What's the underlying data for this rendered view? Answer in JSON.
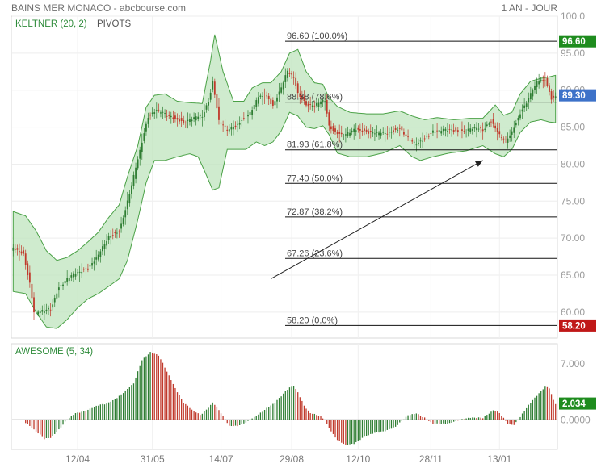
{
  "header": {
    "title": "BAINS MER MONACO - abcbourse.com",
    "period": "1 AN - JOUR"
  },
  "legend": {
    "keltner": "KELTNER (20, 2)",
    "pivots": "PIVOTS",
    "awesome": "AWESOME (5, 34)"
  },
  "colors": {
    "band_fill": "#bfe4bd",
    "band_line": "#4aa146",
    "candle_up": "#2e7d32",
    "candle_down": "#c0392b",
    "high_tag": "#1e8c1e",
    "last_tag": "#3d72c9",
    "low_tag": "#c01818"
  },
  "price_tags": {
    "high": "96.60",
    "last": "89.30",
    "low": "58.20"
  },
  "ao_tags": {
    "last": "2.034",
    "zero": "0.0000"
  },
  "chart_data": [
    {
      "type": "candlestick",
      "title": "BAINS MER MONACO",
      "ylim": [
        56.5,
        100
      ],
      "y_ticks": [
        60,
        65,
        70,
        75,
        80,
        85,
        90,
        95,
        100
      ],
      "y_tick_labels": [
        "60.00",
        "65.00",
        "70.00",
        "75.00",
        "80.00",
        "85.00",
        "90.00",
        "95.00",
        "100.0"
      ],
      "x_tick_labels": [
        "12/04",
        "31/05",
        "14/07",
        "29/08",
        "12/10",
        "28/11",
        "13/01"
      ],
      "x_tick_index": [
        31,
        67,
        100,
        134,
        166,
        201,
        234
      ],
      "n_bars": 262,
      "close_anchors": [
        [
          0,
          68.5
        ],
        [
          5,
          67.8
        ],
        [
          8,
          64.0
        ],
        [
          10,
          60.2
        ],
        [
          13,
          60.0
        ],
        [
          18,
          60.3
        ],
        [
          22,
          63.5
        ],
        [
          27,
          64.8
        ],
        [
          32,
          65.3
        ],
        [
          36,
          66.0
        ],
        [
          41,
          67.8
        ],
        [
          46,
          70.0
        ],
        [
          51,
          71.0
        ],
        [
          55,
          75.0
        ],
        [
          60,
          80.5
        ],
        [
          65,
          86.5
        ],
        [
          69,
          87.5
        ],
        [
          75,
          86.3
        ],
        [
          82,
          85.8
        ],
        [
          88,
          86.3
        ],
        [
          91,
          86.3
        ],
        [
          94,
          88.5
        ],
        [
          96,
          91.3
        ],
        [
          99,
          86.0
        ],
        [
          103,
          84.5
        ],
        [
          107,
          85.0
        ],
        [
          110,
          86.0
        ],
        [
          114,
          87.0
        ],
        [
          118,
          89.0
        ],
        [
          122,
          89.0
        ],
        [
          125,
          88.0
        ],
        [
          129,
          90.5
        ],
        [
          132,
          92.5
        ],
        [
          135,
          91.5
        ],
        [
          137,
          89.5
        ],
        [
          141,
          88.2
        ],
        [
          145,
          88.0
        ],
        [
          150,
          88.5
        ],
        [
          152,
          85.0
        ],
        [
          156,
          84.3
        ],
        [
          160,
          84.0
        ],
        [
          164,
          84.5
        ],
        [
          170,
          84.5
        ],
        [
          176,
          84.2
        ],
        [
          180,
          84.0
        ],
        [
          186,
          85.0
        ],
        [
          190,
          83.5
        ],
        [
          194,
          82.5
        ],
        [
          198,
          83.5
        ],
        [
          202,
          84.6
        ],
        [
          208,
          84.5
        ],
        [
          214,
          84.5
        ],
        [
          222,
          84.8
        ],
        [
          226,
          84.5
        ],
        [
          230,
          86.0
        ],
        [
          234,
          84.0
        ],
        [
          237,
          83.0
        ],
        [
          240,
          84.2
        ],
        [
          244,
          87.0
        ],
        [
          248,
          89.0
        ],
        [
          252,
          91.0
        ],
        [
          256,
          91.3
        ],
        [
          259,
          89.0
        ],
        [
          261,
          89.3
        ]
      ],
      "keltner_upper_anchors": [
        [
          0,
          73.6
        ],
        [
          6,
          73.0
        ],
        [
          11,
          71.0
        ],
        [
          16,
          68.3
        ],
        [
          21,
          67.0
        ],
        [
          26,
          67.4
        ],
        [
          31,
          68.3
        ],
        [
          36,
          69.5
        ],
        [
          41,
          70.8
        ],
        [
          46,
          72.8
        ],
        [
          51,
          74.5
        ],
        [
          55,
          78.3
        ],
        [
          60,
          82.5
        ],
        [
          64,
          87.7
        ],
        [
          68,
          89.3
        ],
        [
          73,
          89.5
        ],
        [
          79,
          88.5
        ],
        [
          85,
          88.3
        ],
        [
          91,
          88.2
        ],
        [
          95,
          94.0
        ],
        [
          97,
          97.5
        ],
        [
          101,
          92.5
        ],
        [
          106,
          88.5
        ],
        [
          111,
          88.5
        ],
        [
          115,
          90.3
        ],
        [
          120,
          91.0
        ],
        [
          124,
          91.0
        ],
        [
          129,
          92.5
        ],
        [
          133,
          95.0
        ],
        [
          137,
          95.5
        ],
        [
          141,
          92.5
        ],
        [
          145,
          91.0
        ],
        [
          149,
          90.8
        ],
        [
          152,
          89.0
        ],
        [
          156,
          87.8
        ],
        [
          162,
          87.0
        ],
        [
          170,
          86.8
        ],
        [
          178,
          86.8
        ],
        [
          186,
          87.2
        ],
        [
          192,
          86.5
        ],
        [
          198,
          86.0
        ],
        [
          204,
          86.3
        ],
        [
          212,
          86.0
        ],
        [
          220,
          86.2
        ],
        [
          226,
          86.2
        ],
        [
          232,
          88.0
        ],
        [
          236,
          86.6
        ],
        [
          240,
          87.0
        ],
        [
          244,
          89.5
        ],
        [
          249,
          91.2
        ],
        [
          254,
          91.6
        ],
        [
          258,
          91.8
        ],
        [
          261,
          92.0
        ]
      ],
      "keltner_lower_anchors": [
        [
          0,
          62.8
        ],
        [
          6,
          62.5
        ],
        [
          11,
          60.0
        ],
        [
          16,
          58.0
        ],
        [
          21,
          57.8
        ],
        [
          26,
          59.0
        ],
        [
          31,
          60.6
        ],
        [
          36,
          61.8
        ],
        [
          41,
          62.5
        ],
        [
          46,
          63.5
        ],
        [
          51,
          64.5
        ],
        [
          55,
          67.0
        ],
        [
          60,
          72.5
        ],
        [
          64,
          77.5
        ],
        [
          68,
          80.5
        ],
        [
          73,
          80.5
        ],
        [
          79,
          81.0
        ],
        [
          85,
          81.4
        ],
        [
          89,
          81.0
        ],
        [
          93,
          78.5
        ],
        [
          96,
          76.5
        ],
        [
          99,
          76.8
        ],
        [
          103,
          82.0
        ],
        [
          108,
          82.0
        ],
        [
          112,
          82.0
        ],
        [
          117,
          83.0
        ],
        [
          121,
          82.5
        ],
        [
          125,
          83.0
        ],
        [
          129,
          84.5
        ],
        [
          133,
          87.0
        ],
        [
          137,
          86.5
        ],
        [
          141,
          85.0
        ],
        [
          145,
          84.8
        ],
        [
          149,
          85.2
        ],
        [
          152,
          84.0
        ],
        [
          156,
          81.5
        ],
        [
          162,
          81.0
        ],
        [
          170,
          81.0
        ],
        [
          178,
          81.5
        ],
        [
          186,
          82.5
        ],
        [
          192,
          81.0
        ],
        [
          196,
          80.5
        ],
        [
          202,
          81.0
        ],
        [
          210,
          81.5
        ],
        [
          218,
          81.8
        ],
        [
          226,
          82.5
        ],
        [
          232,
          81.4
        ],
        [
          236,
          81.0
        ],
        [
          240,
          82.0
        ],
        [
          244,
          84.3
        ],
        [
          249,
          85.7
        ],
        [
          254,
          86.0
        ],
        [
          258,
          85.7
        ],
        [
          261,
          85.6
        ]
      ],
      "fibonacci": [
        {
          "level": "100.0%",
          "value": 96.6,
          "label": "96.60  (100.0%)"
        },
        {
          "level": "78.6%",
          "value": 88.38,
          "label": "88.38  (78.6%)"
        },
        {
          "level": "61.8%",
          "value": 81.93,
          "label": "81.93  (61.8%)"
        },
        {
          "level": "50.0%",
          "value": 77.4,
          "label": "77.40  (50.0%)"
        },
        {
          "level": "38.2%",
          "value": 72.87,
          "label": "72.87  (38.2%)"
        },
        {
          "level": "23.6%",
          "value": 67.26,
          "label": "67.26  (23.6%)"
        },
        {
          "level": "0.0%",
          "value": 58.2,
          "label": "58.20  (0.0%)"
        }
      ],
      "trend_arrow": {
        "from": [
          124,
          64.5
        ],
        "to": [
          226,
          80.5
        ]
      },
      "last_close": 89.3,
      "high": 96.6,
      "low": 58.2
    },
    {
      "type": "histogram",
      "title": "AWESOME (5, 34)",
      "ylim": [
        -3.7,
        9.5
      ],
      "y_ticks": [
        0,
        7
      ],
      "y_tick_labels": [
        "0.0000",
        "7.000"
      ],
      "ao_anchors": [
        [
          6,
          -0.3
        ],
        [
          11,
          -1.5
        ],
        [
          15,
          -2.4
        ],
        [
          18,
          -2.2
        ],
        [
          22,
          -1.2
        ],
        [
          26,
          0.0
        ],
        [
          30,
          0.8
        ],
        [
          35,
          1.2
        ],
        [
          40,
          1.7
        ],
        [
          45,
          2.0
        ],
        [
          50,
          2.8
        ],
        [
          55,
          3.8
        ],
        [
          58,
          4.5
        ],
        [
          62,
          7.5
        ],
        [
          66,
          8.5
        ],
        [
          70,
          8.0
        ],
        [
          74,
          6.0
        ],
        [
          78,
          4.0
        ],
        [
          82,
          2.2
        ],
        [
          86,
          1.2
        ],
        [
          90,
          0.6
        ],
        [
          93,
          1.3
        ],
        [
          96,
          2.2
        ],
        [
          98,
          1.6
        ],
        [
          101,
          0.4
        ],
        [
          104,
          -0.8
        ],
        [
          108,
          -0.7
        ],
        [
          113,
          -0.2
        ],
        [
          118,
          0.6
        ],
        [
          122,
          1.5
        ],
        [
          126,
          2.2
        ],
        [
          130,
          3.2
        ],
        [
          133,
          4.0
        ],
        [
          135,
          4.2
        ],
        [
          137,
          3.5
        ],
        [
          140,
          1.8
        ],
        [
          143,
          0.8
        ],
        [
          147,
          0.5
        ],
        [
          150,
          0.0
        ],
        [
          152,
          -1.0
        ],
        [
          156,
          -2.5
        ],
        [
          160,
          -3.2
        ],
        [
          164,
          -3.0
        ],
        [
          168,
          -2.2
        ],
        [
          172,
          -1.8
        ],
        [
          178,
          -1.5
        ],
        [
          184,
          -0.8
        ],
        [
          190,
          0.5
        ],
        [
          194,
          0.8
        ],
        [
          198,
          0.3
        ],
        [
          202,
          -0.5
        ],
        [
          206,
          -0.6
        ],
        [
          210,
          -0.4
        ],
        [
          214,
          0.0
        ],
        [
          220,
          0.2
        ],
        [
          226,
          0.3
        ],
        [
          231,
          1.2
        ],
        [
          234,
          0.8
        ],
        [
          238,
          -0.5
        ],
        [
          241,
          -0.6
        ],
        [
          244,
          0.4
        ],
        [
          248,
          1.8
        ],
        [
          252,
          3.0
        ],
        [
          256,
          4.2
        ],
        [
          258,
          4.0
        ],
        [
          260,
          2.5
        ],
        [
          261,
          2.0
        ]
      ],
      "last_value": 2.034
    }
  ]
}
